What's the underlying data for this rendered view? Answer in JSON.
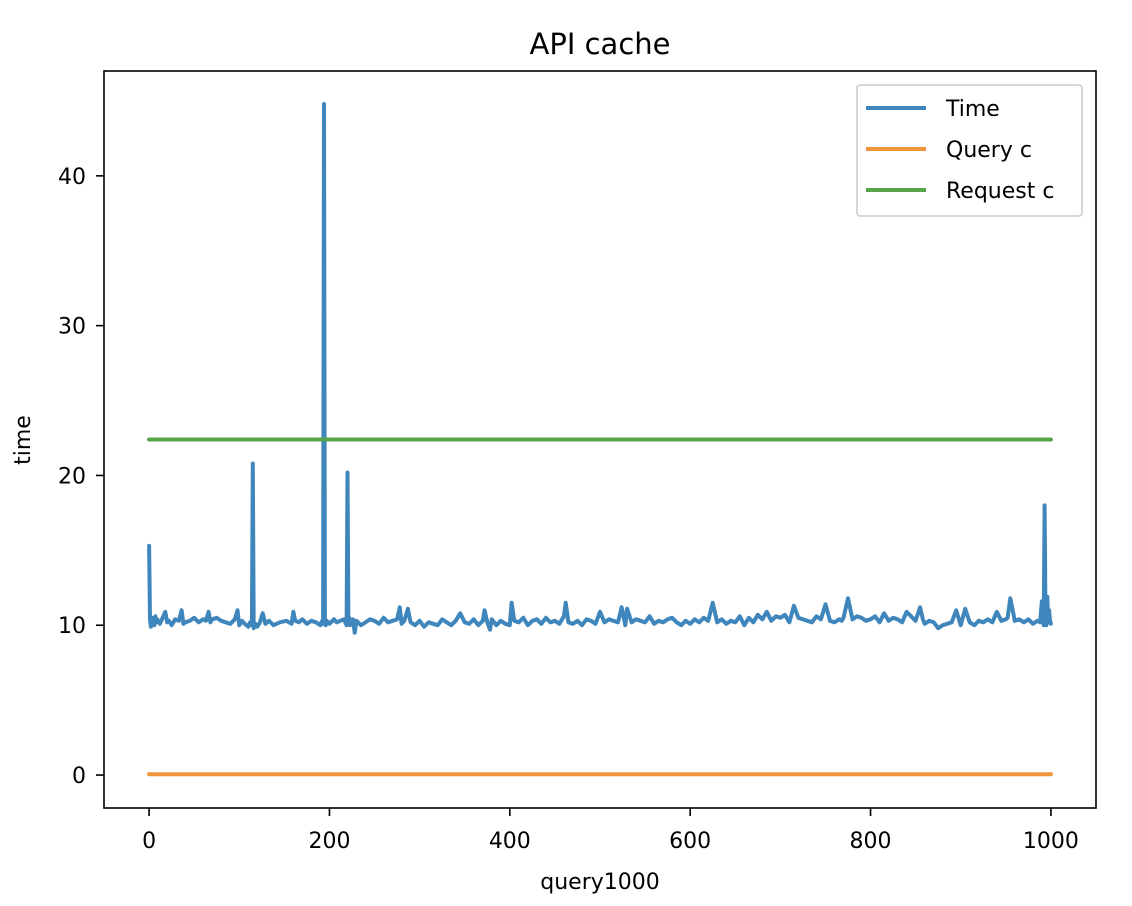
{
  "chart_data": {
    "type": "line",
    "title": "API cache",
    "xlabel": "query1000",
    "ylabel": "time",
    "xlim": [
      -50,
      1050
    ],
    "ylim": [
      -2.2,
      47.0
    ],
    "xticks": [
      0,
      200,
      400,
      600,
      800,
      1000
    ],
    "yticks": [
      0,
      10,
      20,
      30,
      40
    ],
    "grid": false,
    "legend_position": "top-right",
    "series": [
      {
        "name": "Time",
        "color": "#3f86bc",
        "baseline": 10.25,
        "noise": 0.35,
        "x": [
          0,
          1,
          2,
          3,
          4,
          5,
          6,
          7,
          8,
          9,
          12,
          15,
          18,
          20,
          22,
          25,
          29,
          33,
          36,
          38,
          40,
          45,
          50,
          55,
          60,
          63,
          66,
          68,
          70,
          75,
          80,
          85,
          90,
          95,
          98,
          100,
          103,
          106,
          110,
          112,
          114,
          115,
          116,
          118,
          120,
          123,
          126,
          129,
          133,
          138,
          145,
          152,
          158,
          160,
          162,
          166,
          170,
          175,
          180,
          185,
          190,
          192,
          193,
          194,
          195,
          196,
          197,
          200,
          205,
          208,
          212,
          216,
          219,
          220,
          221,
          222,
          223,
          226,
          228,
          230,
          235,
          240,
          245,
          250,
          255,
          260,
          265,
          270,
          275,
          278,
          280,
          283,
          287,
          290,
          295,
          300,
          305,
          310,
          315,
          320,
          325,
          330,
          335,
          340,
          345,
          350,
          355,
          360,
          365,
          370,
          372,
          375,
          378,
          380,
          385,
          390,
          395,
          400,
          402,
          405,
          410,
          415,
          420,
          425,
          430,
          435,
          440,
          445,
          450,
          455,
          460,
          462,
          465,
          470,
          475,
          480,
          485,
          490,
          495,
          500,
          505,
          510,
          515,
          520,
          524,
          528,
          530,
          535,
          540,
          545,
          550,
          555,
          560,
          565,
          570,
          575,
          580,
          585,
          590,
          595,
          600,
          605,
          610,
          615,
          620,
          625,
          630,
          635,
          640,
          645,
          650,
          655,
          660,
          665,
          670,
          675,
          680,
          685,
          690,
          695,
          700,
          705,
          710,
          715,
          720,
          725,
          730,
          735,
          740,
          745,
          750,
          755,
          760,
          765,
          768,
          770,
          775,
          780,
          785,
          790,
          795,
          800,
          805,
          810,
          815,
          820,
          825,
          830,
          835,
          840,
          845,
          850,
          855,
          858,
          860,
          865,
          870,
          875,
          880,
          885,
          890,
          895,
          900,
          905,
          910,
          915,
          920,
          925,
          930,
          935,
          940,
          945,
          950,
          952,
          955,
          960,
          965,
          970,
          975,
          980,
          985,
          988,
          990,
          992,
          993,
          994,
          995,
          996,
          997,
          998,
          999,
          1000
        ],
        "y": [
          15.3,
          10.4,
          9.9,
          10.5,
          10.1,
          10.3,
          10.0,
          10.6,
          10.2,
          10.4,
          10.1,
          10.5,
          10.9,
          10.2,
          10.3,
          10.0,
          10.4,
          10.3,
          11.0,
          10.1,
          10.2,
          10.3,
          10.5,
          10.2,
          10.4,
          10.3,
          10.9,
          10.2,
          10.4,
          10.5,
          10.3,
          10.2,
          10.1,
          10.4,
          11.0,
          10.0,
          10.3,
          10.1,
          9.9,
          10.2,
          10.0,
          20.8,
          9.8,
          10.1,
          9.9,
          10.2,
          10.8,
          10.1,
          10.3,
          10.0,
          10.2,
          10.3,
          10.1,
          10.9,
          10.3,
          10.2,
          10.4,
          10.1,
          10.3,
          10.2,
          10.0,
          10.3,
          10.1,
          44.8,
          10.2,
          10.0,
          10.3,
          10.1,
          10.4,
          10.2,
          10.3,
          10.4,
          10.0,
          20.2,
          10.1,
          10.5,
          10.0,
          10.4,
          9.5,
          10.3,
          10.0,
          10.2,
          10.4,
          10.3,
          10.1,
          10.5,
          10.2,
          10.3,
          10.4,
          11.2,
          10.1,
          10.3,
          11.1,
          10.2,
          10.0,
          10.3,
          9.9,
          10.2,
          10.1,
          10.0,
          10.4,
          10.2,
          10.0,
          10.3,
          10.8,
          10.2,
          10.1,
          10.4,
          10.0,
          10.3,
          11.0,
          10.2,
          9.7,
          10.4,
          10.0,
          10.3,
          10.1,
          10.0,
          11.5,
          10.3,
          10.2,
          10.5,
          10.0,
          10.3,
          10.4,
          10.1,
          10.5,
          10.2,
          10.3,
          10.1,
          10.6,
          11.5,
          10.2,
          10.1,
          10.3,
          10.0,
          10.4,
          10.3,
          10.1,
          10.9,
          10.2,
          10.4,
          10.3,
          10.2,
          11.2,
          10.0,
          11.1,
          10.2,
          10.4,
          10.3,
          10.2,
          10.6,
          10.1,
          10.3,
          10.2,
          10.4,
          10.5,
          10.2,
          10.0,
          10.3,
          10.1,
          10.4,
          10.2,
          10.5,
          10.3,
          11.5,
          10.2,
          10.4,
          10.1,
          10.3,
          10.2,
          10.6,
          10.0,
          10.5,
          10.2,
          10.7,
          10.4,
          10.9,
          10.3,
          10.6,
          10.5,
          10.7,
          10.2,
          11.3,
          10.5,
          10.4,
          10.3,
          10.2,
          10.6,
          10.4,
          11.4,
          10.3,
          10.2,
          10.4,
          10.3,
          10.5,
          11.8,
          10.4,
          10.6,
          10.5,
          10.3,
          10.4,
          10.6,
          10.2,
          10.8,
          10.3,
          10.5,
          10.4,
          10.2,
          10.9,
          10.6,
          10.3,
          11.2,
          10.4,
          10.1,
          10.3,
          10.2,
          9.8,
          10.0,
          10.1,
          10.2,
          11.0,
          10.0,
          11.1,
          10.2,
          10.0,
          10.3,
          10.2,
          10.4,
          10.2,
          10.9,
          10.3,
          10.4,
          10.5,
          11.8,
          10.3,
          10.4,
          10.2,
          10.4,
          10.1,
          10.3,
          10.2,
          11.6,
          10.0,
          18.0,
          10.5,
          10.0,
          11.9,
          10.2,
          11.0,
          10.3,
          10.1
        ],
        "ratio_hint": "spiky series around 10"
      },
      {
        "name": "Query c",
        "color": "#f0963a",
        "x": [
          0,
          1000
        ],
        "y": [
          0.05,
          0.05
        ]
      },
      {
        "name": "Request c",
        "color": "#56a34a",
        "x": [
          0,
          1000
        ],
        "y": [
          22.4,
          22.4
        ]
      }
    ]
  }
}
